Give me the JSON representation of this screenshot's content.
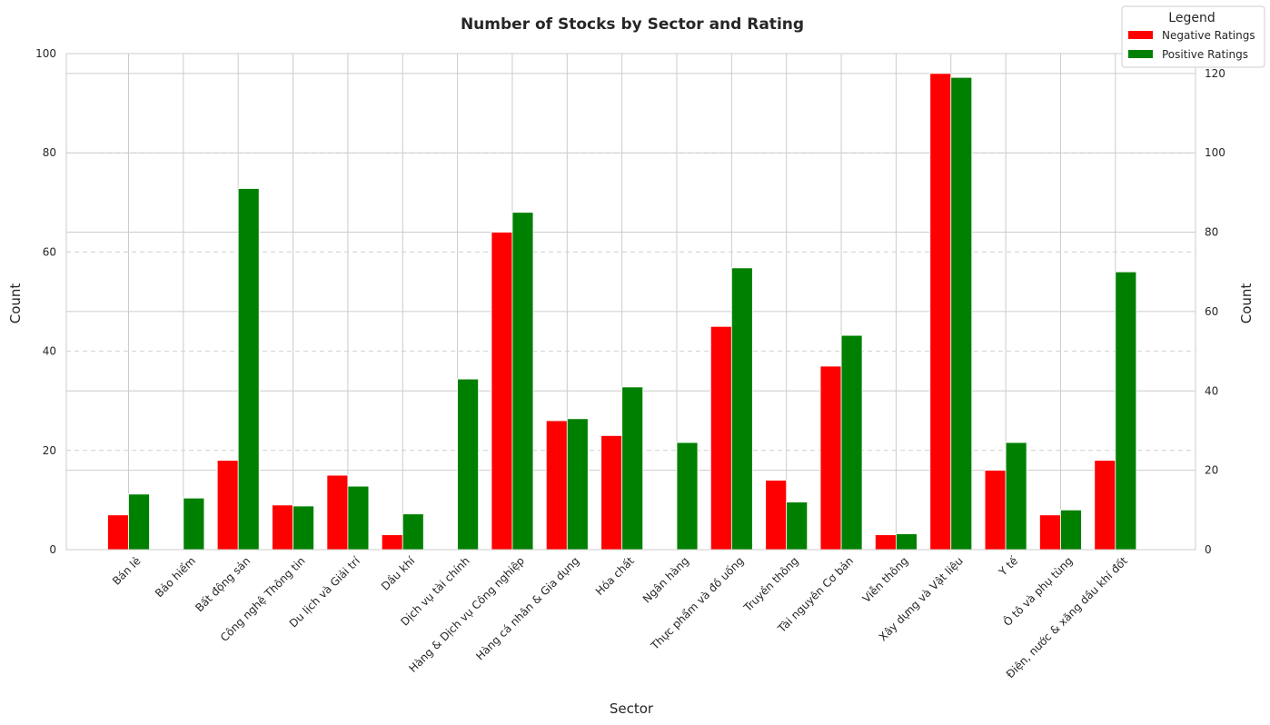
{
  "chart_data": {
    "type": "bar",
    "title": "Number of Stocks by Sector and Rating",
    "xlabel": "Sector",
    "ylabel_left": "Count",
    "ylabel_right": "Count",
    "categories": [
      "Bán lẻ",
      "Bảo hiểm",
      "Bất động sản",
      "Công nghệ Thông tin",
      "Du lịch và Giải trí",
      "Dầu khí",
      "Dịch vụ tài chính",
      "Hàng & Dịch vụ Công nghiệp",
      "Hàng cá nhân & Gia dụng",
      "Hóa chất",
      "Ngân hàng",
      "Thực phẩm và đồ uống",
      "Truyền thông",
      "Tài nguyên Cơ bản",
      "Viễn thông",
      "Xây dựng và Vật liệu",
      "Y tế",
      "Ô tô và phụ tùng",
      "Điện, nước & xăng dầu khí đốt"
    ],
    "series": [
      {
        "name": "Negative Ratings",
        "color": "#ff0000",
        "axis": "left",
        "values": [
          7,
          0,
          18,
          9,
          15,
          3,
          0,
          64,
          26,
          23,
          0,
          45,
          14,
          37,
          3,
          96,
          16,
          7,
          18
        ]
      },
      {
        "name": "Positive Ratings",
        "color": "#008000",
        "axis": "right",
        "values": [
          14,
          13,
          91,
          11,
          16,
          9,
          43,
          85,
          33,
          41,
          27,
          71,
          12,
          54,
          4,
          119,
          27,
          10,
          70
        ]
      }
    ],
    "ylim_left": [
      0,
      100
    ],
    "yticks_left": [
      0,
      20,
      40,
      60,
      80,
      100
    ],
    "ylim_right": [
      0,
      125
    ],
    "yticks_right": [
      0,
      20,
      40,
      60,
      80,
      100,
      120
    ],
    "grid": true,
    "legend": {
      "title": "Legend",
      "position": "top-right"
    }
  }
}
